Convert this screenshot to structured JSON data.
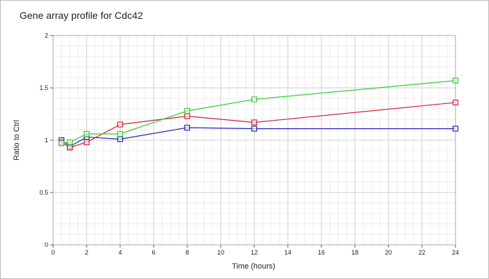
{
  "chart_data": {
    "type": "line",
    "title": "Gene array profile for Cdc42",
    "xlabel": "Time (hours)",
    "ylabel": "Ratio to Ctrl",
    "xlim": [
      0,
      24
    ],
    "ylim": [
      0,
      2
    ],
    "xticks": [
      0,
      2,
      4,
      6,
      8,
      10,
      12,
      14,
      16,
      18,
      20,
      22,
      24
    ],
    "yticks": [
      0,
      0.5,
      1,
      1.5,
      2
    ],
    "ytick_labels": [
      "0",
      "0.5",
      "1",
      "1.5",
      "2"
    ],
    "grid": true,
    "legend": "none",
    "series": [
      {
        "color": "#2222bb",
        "x": [
          0.5,
          1,
          2,
          4,
          8,
          12,
          24
        ],
        "values": [
          1.0,
          0.94,
          1.03,
          1.01,
          1.12,
          1.11,
          1.11
        ]
      },
      {
        "color": "#cc2233",
        "x": [
          0.5,
          1,
          2,
          4,
          8,
          12,
          24
        ],
        "values": [
          0.98,
          0.93,
          0.98,
          1.15,
          1.23,
          1.17,
          1.36
        ]
      },
      {
        "color": "#33cc33",
        "x": [
          0.5,
          1,
          2,
          4,
          8,
          12,
          24
        ],
        "values": [
          0.97,
          0.98,
          1.06,
          1.06,
          1.28,
          1.39,
          1.57
        ]
      }
    ]
  }
}
